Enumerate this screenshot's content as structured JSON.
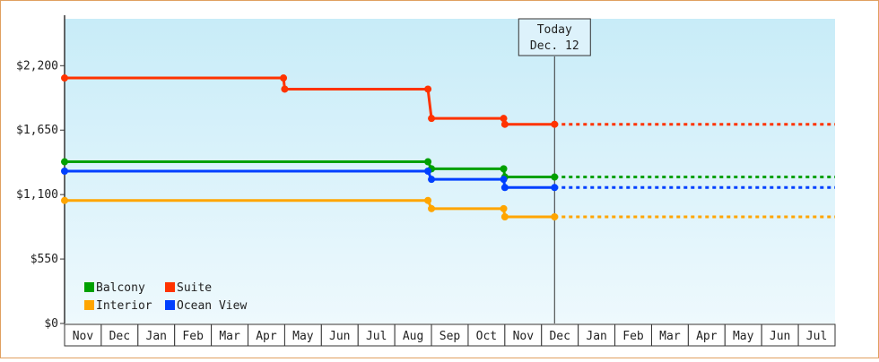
{
  "chart_data": {
    "type": "line",
    "subtype": "step",
    "title": "",
    "xlabel": "",
    "ylabel": "",
    "ylim": [
      0,
      2600
    ],
    "y_ticks": [
      {
        "value": 0,
        "label": "$0"
      },
      {
        "value": 550,
        "label": "$550"
      },
      {
        "value": 1100,
        "label": "$1,100"
      },
      {
        "value": 1650,
        "label": "$1,650"
      },
      {
        "value": 2200,
        "label": "$2,200"
      }
    ],
    "x_range": [
      "2016-11-01",
      "2017-08-01"
    ],
    "x_labels": [
      "Nov",
      "Dec",
      "Jan",
      "Feb",
      "Mar",
      "Apr",
      "May",
      "Jun",
      "Jul",
      "Aug",
      "Sep",
      "Oct",
      "Nov",
      "Dec",
      "Jan",
      "Feb",
      "Mar",
      "Apr",
      "May",
      "Jun",
      "Jul"
    ],
    "today": {
      "line1": "Today",
      "line2": "Dec. 12",
      "date": "2017-12-12"
    },
    "grid": false,
    "background": [
      "#c8ecf8",
      "#eef9fd"
    ],
    "legend_position": "bottom-left",
    "series": [
      {
        "name": "Suite",
        "color": "#ff3300",
        "points": [
          {
            "date": "2016-11-01",
            "value": 2095
          },
          {
            "date": "2017-04-30",
            "value": 2095
          },
          {
            "date": "2017-05-01",
            "value": 2000
          },
          {
            "date": "2017-08-29",
            "value": 2000
          },
          {
            "date": "2017-09-01",
            "value": 1750
          },
          {
            "date": "2017-10-31",
            "value": 1750
          },
          {
            "date": "2017-11-01",
            "value": 1700
          },
          {
            "date": "2017-12-12",
            "value": 1700
          }
        ],
        "projected_to": "2018-08-01"
      },
      {
        "name": "Balcony",
        "color": "#00a000",
        "points": [
          {
            "date": "2016-11-01",
            "value": 1380
          },
          {
            "date": "2017-05-01",
            "value": 1380
          },
          {
            "date": "2017-08-29",
            "value": 1380
          },
          {
            "date": "2017-09-01",
            "value": 1320
          },
          {
            "date": "2017-10-31",
            "value": 1320
          },
          {
            "date": "2017-11-01",
            "value": 1250
          },
          {
            "date": "2017-12-12",
            "value": 1250
          }
        ],
        "projected_to": "2018-08-01"
      },
      {
        "name": "Ocean View",
        "color": "#0040ff",
        "points": [
          {
            "date": "2016-11-01",
            "value": 1300
          },
          {
            "date": "2017-08-29",
            "value": 1300
          },
          {
            "date": "2017-09-01",
            "value": 1230
          },
          {
            "date": "2017-10-31",
            "value": 1230
          },
          {
            "date": "2017-11-01",
            "value": 1160
          },
          {
            "date": "2017-12-12",
            "value": 1160
          }
        ],
        "projected_to": "2018-08-01"
      },
      {
        "name": "Interior",
        "color": "#ffa500",
        "points": [
          {
            "date": "2016-11-01",
            "value": 1050
          },
          {
            "date": "2017-08-29",
            "value": 1050
          },
          {
            "date": "2017-09-01",
            "value": 980
          },
          {
            "date": "2017-10-31",
            "value": 980
          },
          {
            "date": "2017-11-01",
            "value": 910
          },
          {
            "date": "2017-12-12",
            "value": 910
          }
        ],
        "projected_to": "2018-08-01"
      }
    ],
    "legend": [
      {
        "series": "Balcony"
      },
      {
        "series": "Suite"
      },
      {
        "series": "Interior"
      },
      {
        "series": "Ocean View"
      }
    ]
  }
}
